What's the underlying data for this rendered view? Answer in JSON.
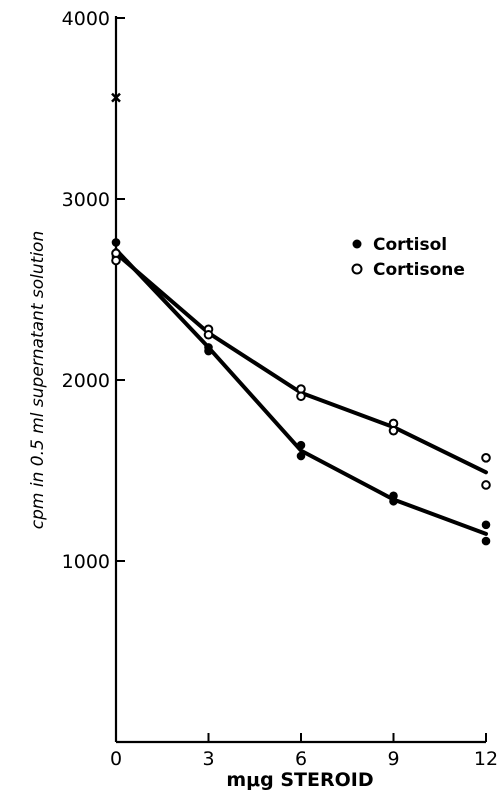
{
  "chart_data": {
    "type": "line",
    "title": "",
    "xlabel": "mμg STEROID",
    "ylabel": "cpm in 0.5 ml supernatant solution",
    "xlim": [
      0,
      12
    ],
    "ylim": [
      0,
      4000
    ],
    "x_ticks": [
      "0",
      "3",
      "6",
      "9",
      "12"
    ],
    "y_ticks": [
      "1000",
      "2000",
      "3000",
      "4000"
    ],
    "grid": false,
    "legend_position": "upper-right",
    "control_point": {
      "x": 0,
      "y": 3560
    },
    "series": [
      {
        "name": "Cortisol",
        "marker": "filled-circle",
        "points": [
          [
            0,
            2760
          ],
          [
            0,
            2680
          ],
          [
            3,
            2180
          ],
          [
            3,
            2160
          ],
          [
            6,
            1640
          ],
          [
            6,
            1580
          ],
          [
            9,
            1360
          ],
          [
            9,
            1330
          ],
          [
            12,
            1200
          ],
          [
            12,
            1110
          ]
        ],
        "fit": [
          [
            0,
            2720
          ],
          [
            3,
            2180
          ],
          [
            6,
            1610
          ],
          [
            9,
            1340
          ],
          [
            12,
            1150
          ]
        ]
      },
      {
        "name": "Cortisone",
        "marker": "open-circle",
        "points": [
          [
            0,
            2700
          ],
          [
            0,
            2660
          ],
          [
            3,
            2280
          ],
          [
            3,
            2250
          ],
          [
            6,
            1950
          ],
          [
            6,
            1910
          ],
          [
            9,
            1760
          ],
          [
            9,
            1720
          ],
          [
            12,
            1570
          ],
          [
            12,
            1420
          ]
        ],
        "fit": [
          [
            0,
            2700
          ],
          [
            3,
            2260
          ],
          [
            6,
            1930
          ],
          [
            9,
            1740
          ],
          [
            12,
            1490
          ]
        ]
      }
    ]
  }
}
